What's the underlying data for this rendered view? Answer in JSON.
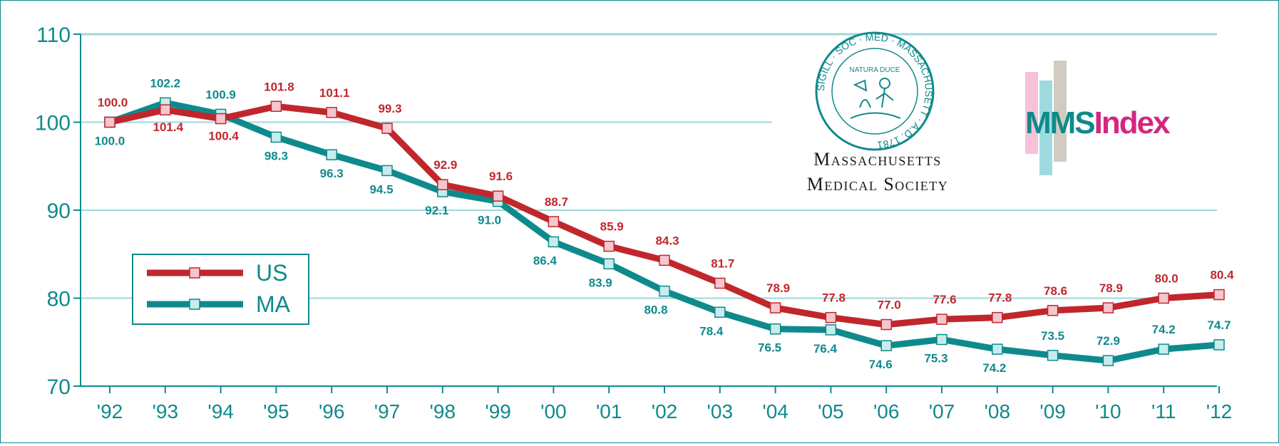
{
  "chart_data": {
    "type": "line",
    "categories": [
      "'92",
      "'93",
      "'94",
      "'95",
      "'96",
      "'97",
      "'98",
      "'99",
      "'00",
      "'01",
      "'02",
      "'03",
      "'04",
      "'05",
      "'06",
      "'07",
      "'08",
      "'09",
      "'10",
      "'11",
      "'12"
    ],
    "series": [
      {
        "name": "US",
        "color": "#c0272d",
        "marker_fill": "#f6c6cf",
        "values": [
          100.0,
          101.4,
          100.4,
          101.8,
          101.1,
          99.3,
          92.9,
          91.6,
          88.7,
          85.9,
          84.3,
          81.7,
          78.9,
          77.8,
          77.0,
          77.6,
          77.8,
          78.6,
          78.9,
          80.0,
          80.4
        ]
      },
      {
        "name": "MA",
        "color": "#0f8a8c",
        "marker_fill": "#c7ecec",
        "values": [
          100.0,
          102.2,
          100.9,
          98.3,
          96.3,
          94.5,
          92.1,
          91.0,
          86.4,
          83.9,
          80.8,
          78.4,
          76.5,
          76.4,
          74.6,
          75.3,
          74.2,
          73.5,
          72.9,
          74.2,
          74.7
        ]
      }
    ],
    "ylim": [
      70,
      110
    ],
    "yticks": [
      70,
      80,
      90,
      100,
      110
    ],
    "grid": true,
    "legend_position": "left"
  },
  "organization": {
    "seal_text": "SIGILL · SOC · MED · MASSACHUSETT · A.D. 1781",
    "seal_motto": "NATURA DUCE",
    "name_line1": "Massachusetts",
    "name_line2": "Medical Society"
  },
  "logo": {
    "part1": "MMS",
    "part2": "Index",
    "color1": "#0f8a8c",
    "color2": "#d4267e"
  }
}
